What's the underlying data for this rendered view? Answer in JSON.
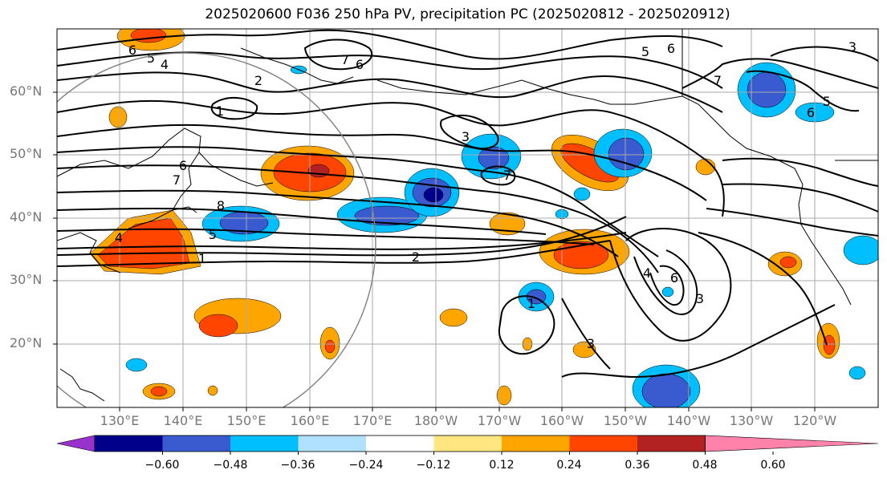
{
  "title": "2025020600 F036 250 hPa PV, precipitation PC (2025020812 - 2025020912)",
  "lat_labels": [
    "60°N",
    "50°N",
    "40°N",
    "30°N",
    "20°N"
  ],
  "lon_labels": [
    "130°E",
    "140°E",
    "150°E",
    "160°E",
    "170°E",
    "180°W",
    "170°W",
    "160°W",
    "150°W",
    "140°W",
    "130°W",
    "120°W"
  ],
  "colorbar": {
    "ticks": [
      "−0.60",
      "−0.48",
      "−0.36",
      "−0.24",
      "−0.12",
      "0.12",
      "0.24",
      "0.36",
      "0.48",
      "0.60"
    ],
    "colors": [
      "#9932cc",
      "#00008b",
      "#3a5bd0",
      "#00bfff",
      "#b0e2ff",
      "#ffffff",
      "#ffe680",
      "#ffa500",
      "#ff4500",
      "#b22222",
      "#ff82ab"
    ]
  },
  "contour_labels": [
    "6",
    "5",
    "4",
    "2",
    "7",
    "6",
    "1",
    "6",
    "7",
    "8",
    "5",
    "4",
    "1",
    "2",
    "3",
    "7",
    "5",
    "6",
    "7",
    "5",
    "6",
    "4",
    "6",
    "3",
    "1",
    "3",
    "3"
  ]
}
